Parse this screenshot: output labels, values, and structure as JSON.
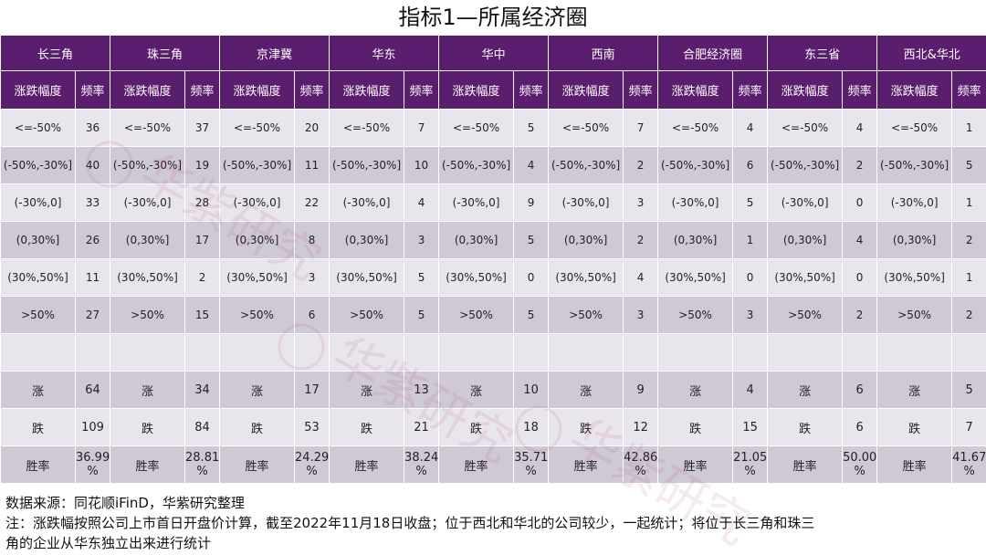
{
  "title": "指标1—所属经济圈",
  "regions": [
    "长三角",
    "珠三角",
    "京津冀",
    "华东",
    "华中",
    "西南",
    "合肥经济圈",
    "东三省",
    "西北&华北"
  ],
  "sub_headers": {
    "range": "涨跌幅度",
    "freq": "频率"
  },
  "rows": [
    {
      "label": "<=-50%",
      "freqs": [
        "36",
        "37",
        "20",
        "7",
        "5",
        "7",
        "4",
        "4",
        "1"
      ]
    },
    {
      "label": "(-50%,-30%]",
      "freqs": [
        "40",
        "19",
        "11",
        "10",
        "4",
        "2",
        "6",
        "2",
        "5"
      ]
    },
    {
      "label": "(-30%,0]",
      "freqs": [
        "33",
        "28",
        "22",
        "4",
        "9",
        "3",
        "5",
        "0",
        "1"
      ]
    },
    {
      "label": "(0,30%]",
      "freqs": [
        "26",
        "17",
        "8",
        "3",
        "5",
        "2",
        "1",
        "4",
        "2"
      ]
    },
    {
      "label": "(30%,50%]",
      "freqs": [
        "11",
        "2",
        "3",
        "5",
        "0",
        "4",
        "0",
        "0",
        "1"
      ]
    },
    {
      "label": ">50%",
      "freqs": [
        "27",
        "15",
        "6",
        "5",
        "5",
        "3",
        "3",
        "2",
        "2"
      ]
    }
  ],
  "summary": [
    {
      "label": "涨",
      "values": [
        "64",
        "34",
        "17",
        "13",
        "10",
        "9",
        "4",
        "6",
        "5"
      ]
    },
    {
      "label": "跌",
      "values": [
        "109",
        "84",
        "53",
        "21",
        "18",
        "12",
        "15",
        "6",
        "7"
      ]
    },
    {
      "label": "胜率",
      "values": [
        "36.99 %",
        "28.81 %",
        "24.29 %",
        "38.24 %",
        "35.71 %",
        "42.86 %",
        "21.05 %",
        "50.00 %",
        "41.67 %"
      ]
    }
  ],
  "watermark": "华紫研究",
  "footer": {
    "source": "数据来源：同花顺iFinD，华紫研究整理",
    "note_line1": "注：涨跌幅按照公司上市首日开盘价计算，截至2022年11月18日收盘；位于西北和华北的公司较少，一起统计；将位于长三角和珠三",
    "note_line2": "角的企业从华东独立出来进行统计"
  },
  "colors": {
    "header": "#5b1e6e",
    "row_light": "#e9e5ec",
    "row_dark": "#cfc8d5"
  }
}
